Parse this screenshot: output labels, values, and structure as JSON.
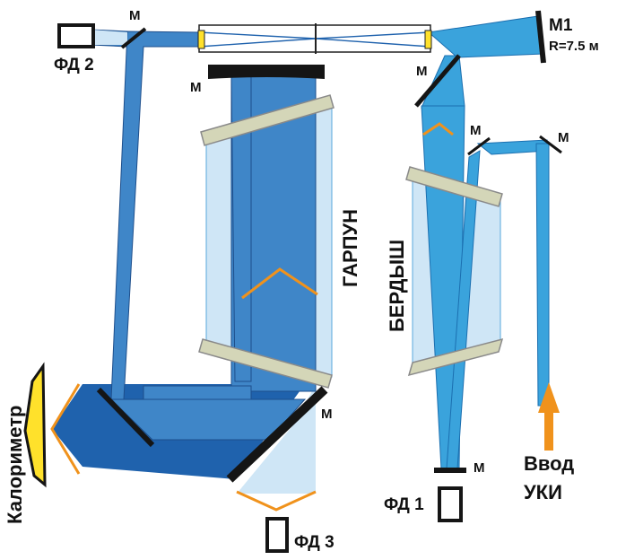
{
  "labels": {
    "mirror_m1": "M1",
    "m1_radius": "R=7.5 м",
    "mirror": "M",
    "fd1": "ФД 1",
    "fd2": "ФД 2",
    "fd3": "ФД 3",
    "garpun": "ГАРПУН",
    "berdysh": "БЕРДЫШ",
    "calorimeter": "Калориметр",
    "input_line1": "Ввод",
    "input_line2": "УКИ"
  },
  "colors": {
    "beam_light": "#3aa3dc",
    "beam_mid": "#3f86c8",
    "beam_dark": "#1f62ad",
    "amp_fill": "#cfe6f6",
    "window": "#d4d6b8",
    "mirror": "#151515",
    "orange": "#f0921c",
    "yellow": "#ffe12b"
  }
}
